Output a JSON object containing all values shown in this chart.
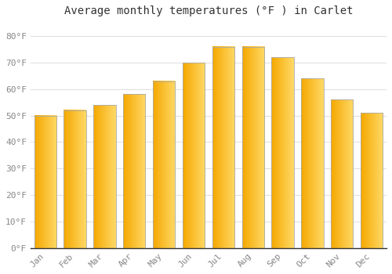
{
  "title": "Average monthly temperatures (°F ) in Carlet",
  "months": [
    "Jan",
    "Feb",
    "Mar",
    "Apr",
    "May",
    "Jun",
    "Jul",
    "Aug",
    "Sep",
    "Oct",
    "Nov",
    "Dec"
  ],
  "values": [
    50,
    52,
    54,
    58,
    63,
    70,
    76,
    76,
    72,
    64,
    56,
    51
  ],
  "bar_color_left": "#F5A800",
  "bar_color_right": "#FFCC44",
  "bar_color_mid": "#FDB92E",
  "background_color": "#FFFFFF",
  "ylim": [
    0,
    85
  ],
  "yticks": [
    0,
    10,
    20,
    30,
    40,
    50,
    60,
    70,
    80
  ],
  "ytick_labels": [
    "0°F",
    "10°F",
    "20°F",
    "30°F",
    "40°F",
    "50°F",
    "60°F",
    "70°F",
    "80°F"
  ],
  "title_fontsize": 10,
  "tick_fontsize": 8,
  "grid_color": "#E0E0E0",
  "tick_color": "#888888",
  "spine_color": "#333333"
}
